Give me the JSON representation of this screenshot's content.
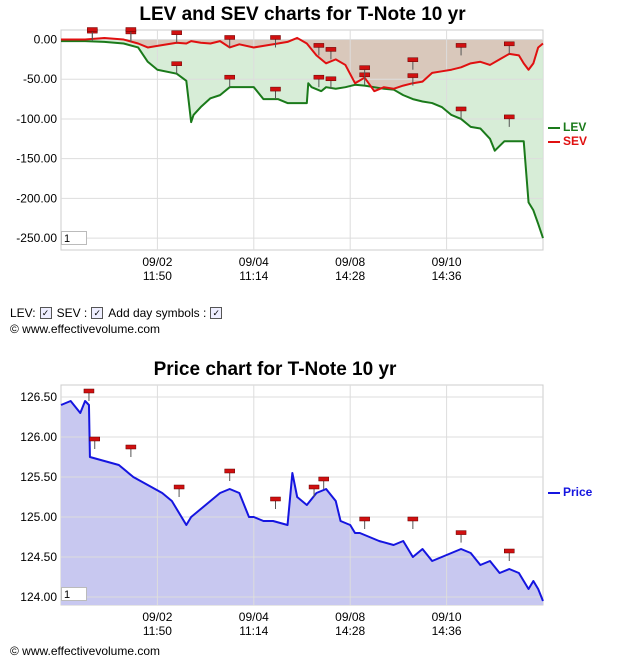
{
  "controls": {
    "lev_label": "LEV:",
    "sev_label": "SEV :",
    "day_symbols_label": "Add day symbols :"
  },
  "copyright": "© www.effectivevolume.com",
  "chart_data": [
    {
      "type": "line",
      "title": "LEV and SEV charts for T-Note 10 yr",
      "zoom_value": "1",
      "y_ticks": [
        "0.00",
        "-50.00",
        "-100.00",
        "-150.00",
        "-200.00",
        "-250.00"
      ],
      "y_tick_values": [
        0,
        -50,
        -100,
        -150,
        -200,
        -250
      ],
      "ylim": [
        -265,
        12
      ],
      "xlim": [
        0,
        100
      ],
      "x_ticks": [
        {
          "x": 20,
          "date": "09/02",
          "time": "11:50"
        },
        {
          "x": 40,
          "date": "09/04",
          "time": "11:14"
        },
        {
          "x": 60,
          "date": "09/08",
          "time": "14:28"
        },
        {
          "x": 80,
          "date": "09/10",
          "time": "14:36"
        }
      ],
      "legend_position": "right",
      "series": [
        {
          "name": "LEV",
          "color": "#1a7a1a",
          "fill": "#d3ebd3",
          "x": [
            0,
            5,
            9,
            13,
            16,
            18,
            20,
            24,
            26,
            27,
            27.5,
            29,
            31,
            33,
            35,
            37,
            40,
            42,
            45,
            47,
            49,
            51,
            51.3,
            52,
            54,
            55,
            57,
            59,
            61,
            63,
            65,
            67,
            69,
            71,
            73,
            75,
            77,
            79,
            81,
            83,
            85,
            87,
            89,
            90,
            92,
            94,
            96,
            97,
            98,
            99,
            100
          ],
          "y": [
            -2,
            -2,
            -3,
            -5,
            -10,
            -28,
            -38,
            -43,
            -52,
            -104,
            -95,
            -85,
            -74,
            -70,
            -60,
            -60,
            -60,
            -75,
            -75,
            -80,
            -80,
            -80,
            -55,
            -60,
            -65,
            -60,
            -62,
            -60,
            -57,
            -58,
            -60,
            -62,
            -63,
            -70,
            -75,
            -78,
            -80,
            -85,
            -95,
            -100,
            -110,
            -112,
            -125,
            -140,
            -128,
            -128,
            -128,
            -205,
            -215,
            -232,
            -250
          ]
        },
        {
          "name": "SEV",
          "color": "#e01010",
          "fill": "#d9c3b8",
          "x": [
            0,
            5,
            9,
            13,
            16,
            18,
            20,
            24,
            26,
            27,
            29,
            31,
            33,
            35,
            37,
            40,
            42,
            45,
            47,
            49,
            51,
            53,
            55,
            57,
            59,
            61,
            63,
            65,
            67,
            69,
            71,
            73,
            75,
            77,
            79,
            81,
            83,
            85,
            87,
            89,
            91,
            93,
            95,
            96,
            97,
            98,
            99,
            100
          ],
          "y": [
            0,
            0,
            2,
            0,
            -5,
            -10,
            -8,
            -4,
            -5,
            -2,
            -4,
            -5,
            -2,
            -10,
            -6,
            -10,
            -8,
            -5,
            -3,
            2,
            -5,
            -20,
            -30,
            -25,
            -32,
            -55,
            -48,
            -65,
            -60,
            -62,
            -58,
            -55,
            -53,
            -42,
            -40,
            -38,
            -35,
            -30,
            -28,
            -32,
            -25,
            -18,
            -20,
            -30,
            -38,
            -30,
            -10,
            -5
          ]
        }
      ],
      "day_markers_lev": [
        {
          "x": 6.5,
          "y": -2
        },
        {
          "x": 14.5,
          "y": -3
        },
        {
          "x": 24,
          "y": -43
        },
        {
          "x": 35,
          "y": -60
        },
        {
          "x": 44.5,
          "y": -75
        },
        {
          "x": 53.5,
          "y": -60
        },
        {
          "x": 56,
          "y": -62
        },
        {
          "x": 63,
          "y": -57
        },
        {
          "x": 73,
          "y": -58
        },
        {
          "x": 83,
          "y": -100
        },
        {
          "x": 93,
          "y": -110
        }
      ],
      "day_markers_sev": [
        {
          "x": 6.5,
          "y": 0
        },
        {
          "x": 14.5,
          "y": 0
        },
        {
          "x": 24,
          "y": -4
        },
        {
          "x": 35,
          "y": -10
        },
        {
          "x": 44.5,
          "y": -10
        },
        {
          "x": 53.5,
          "y": -20
        },
        {
          "x": 56,
          "y": -25
        },
        {
          "x": 63,
          "y": -48
        },
        {
          "x": 73,
          "y": -38
        },
        {
          "x": 83,
          "y": -20
        },
        {
          "x": 93,
          "y": -18
        }
      ]
    },
    {
      "type": "area",
      "title": "Price chart for T-Note 10 yr",
      "zoom_value": "1",
      "y_ticks": [
        "126.50",
        "126.00",
        "125.50",
        "125.00",
        "124.50",
        "124.00"
      ],
      "y_tick_values": [
        126.5,
        126.0,
        125.5,
        125.0,
        124.5,
        124.0
      ],
      "ylim": [
        123.9,
        126.65
      ],
      "xlim": [
        0,
        100
      ],
      "x_ticks": [
        {
          "x": 20,
          "date": "09/02",
          "time": "11:50"
        },
        {
          "x": 40,
          "date": "09/04",
          "time": "11:14"
        },
        {
          "x": 60,
          "date": "09/08",
          "time": "14:28"
        },
        {
          "x": 80,
          "date": "09/10",
          "time": "14:36"
        }
      ],
      "legend_position": "right",
      "series": [
        {
          "name": "Price",
          "color": "#1515e0",
          "fill": "#c8c8f0",
          "x": [
            0,
            2,
            4,
            5,
            5.8,
            6,
            9,
            12,
            15,
            18,
            21,
            23,
            26,
            27,
            29,
            31,
            33,
            35,
            37,
            39,
            40,
            42,
            44,
            47,
            48,
            49,
            51,
            53,
            55,
            57,
            58,
            60,
            61,
            62,
            64,
            66,
            69,
            71,
            73,
            75,
            77,
            79,
            81,
            83,
            85,
            87,
            89,
            91,
            93,
            95,
            97,
            98,
            99,
            100
          ],
          "y": [
            126.4,
            126.45,
            126.3,
            126.45,
            126.4,
            125.75,
            125.7,
            125.65,
            125.5,
            125.4,
            125.3,
            125.2,
            124.9,
            125.0,
            125.1,
            125.2,
            125.3,
            125.35,
            125.3,
            125.0,
            125.0,
            124.95,
            124.95,
            124.9,
            125.55,
            125.25,
            125.15,
            125.3,
            125.35,
            125.2,
            124.95,
            124.9,
            124.8,
            124.8,
            124.75,
            124.7,
            124.65,
            124.7,
            124.5,
            124.6,
            124.45,
            124.5,
            124.55,
            124.6,
            124.55,
            124.4,
            124.45,
            124.3,
            124.35,
            124.3,
            124.1,
            124.2,
            124.1,
            123.95
          ]
        }
      ],
      "day_markers": [
        {
          "x": 5.8,
          "y": 126.45
        },
        {
          "x": 7,
          "y": 125.85
        },
        {
          "x": 14.5,
          "y": 125.75
        },
        {
          "x": 24.5,
          "y": 125.25
        },
        {
          "x": 35,
          "y": 125.45
        },
        {
          "x": 44.5,
          "y": 125.1
        },
        {
          "x": 52.5,
          "y": 125.25
        },
        {
          "x": 54.5,
          "y": 125.35
        },
        {
          "x": 63,
          "y": 124.85
        },
        {
          "x": 73,
          "y": 124.85
        },
        {
          "x": 83,
          "y": 124.68
        },
        {
          "x": 93,
          "y": 124.45
        }
      ]
    }
  ]
}
